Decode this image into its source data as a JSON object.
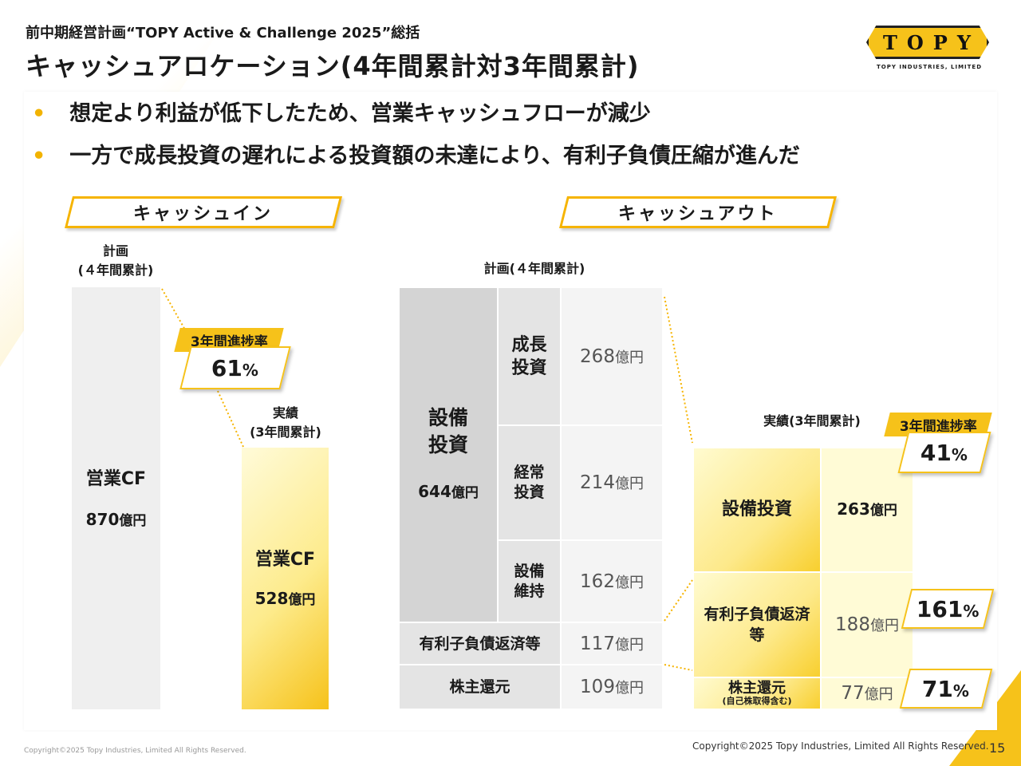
{
  "header": {
    "subtitle": "前中期経営計画“TOPY Active & Challenge 2025”総括",
    "title": "キャッシュアロケーション(4年間累計対3年間累計)",
    "logo_text": "TOPY",
    "logo_sub": "TOPY INDUSTRIES, LIMITED"
  },
  "bullets": [
    "想定より利益が低下したため、営業キャッシュフローが減少",
    "一方で成長投資の遅れによる投資額の未達により、有利子負債圧縮が進んだ"
  ],
  "cash_in": {
    "heading": "キャッシュイン",
    "plan_label_1": "計画",
    "plan_label_2": "(４年間累計)",
    "plan_item": "営業CF",
    "plan_value": "870",
    "actual_label_1": "実績",
    "actual_label_2": "(3年間累計)",
    "actual_item": "営業CF",
    "actual_value": "528",
    "unit": "億円",
    "rate_label": "3年間進捗率",
    "rate_value": "61",
    "rate_unit": "%"
  },
  "cash_out": {
    "heading": "キャッシュアウト",
    "plan_label": "計画(４年間累計)",
    "plan_capex_label_1": "設備",
    "plan_capex_label_2": "投資",
    "plan_capex_value": "644",
    "plan_rows": [
      {
        "label_1": "成長",
        "label_2": "投資",
        "value": "268"
      },
      {
        "label_1": "経常",
        "label_2": "投資",
        "value": "214"
      },
      {
        "label_1": "設備",
        "label_2": "維持",
        "value": "162"
      }
    ],
    "plan_debt_label": "有利子負債返済等",
    "plan_debt_value": "117",
    "plan_share_label": "株主還元",
    "plan_share_value": "109",
    "unit": "億円",
    "actual_label": "実績(3年間累計)",
    "rate_label": "3年間進捗率",
    "actual_capex_label": "設備投資",
    "actual_capex_value": "263",
    "actual_capex_rate": "41",
    "actual_debt_label_1": "有利子負債返済",
    "actual_debt_label_2": "等",
    "actual_debt_value": "188",
    "actual_debt_rate": "161",
    "actual_share_label": "株主還元",
    "actual_share_note": "(自己株取得含む)",
    "actual_share_value": "77",
    "actual_share_rate": "71",
    "rate_unit": "%"
  },
  "footer": {
    "left": "Copyright©2025 Topy Industries, Limited All Rights Reserved.",
    "right": "Copyright©2025 Topy Industries, Limited All Rights Reserved.",
    "page": "15"
  },
  "colors": {
    "accent": "#f6c21a",
    "gray": "#efefef",
    "pale_yellow": "#fffbd6"
  }
}
